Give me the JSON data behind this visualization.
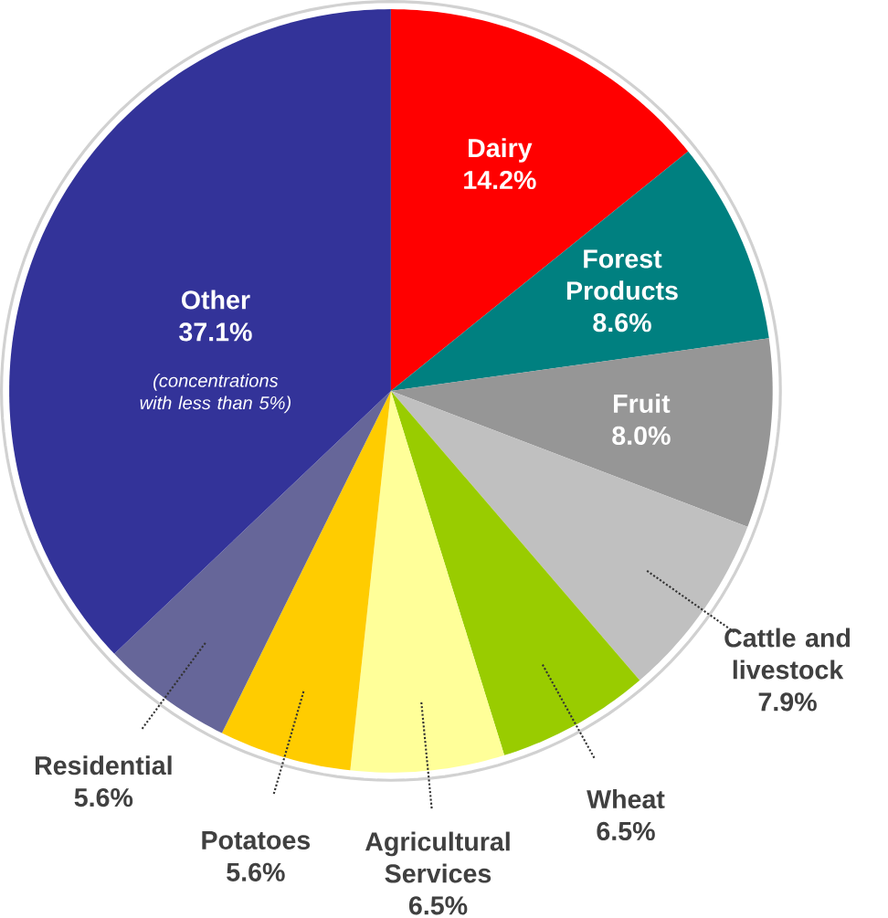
{
  "chart_data": {
    "type": "pie",
    "categories": [
      "Dairy",
      "Forest Products",
      "Fruit",
      "Cattle and livestock",
      "Wheat",
      "Agricultural Services",
      "Potatoes",
      "Residential",
      "Other"
    ],
    "values": [
      14.2,
      8.6,
      8.0,
      7.9,
      6.5,
      6.5,
      5.6,
      5.6,
      37.1
    ],
    "value_labels": [
      "14.2%",
      "8.6%",
      "8.0%",
      "7.9%",
      "6.5%",
      "6.5%",
      "5.6%",
      "5.6%",
      "37.1%"
    ],
    "colors": [
      "#ff0000",
      "#008080",
      "#969696",
      "#c0c0c0",
      "#99cc00",
      "#ffff99",
      "#ffcc00",
      "#666699",
      "#333399"
    ],
    "annotations": [
      {
        "text": "(concentrations with less than 5%)",
        "x": "Other"
      }
    ]
  }
}
